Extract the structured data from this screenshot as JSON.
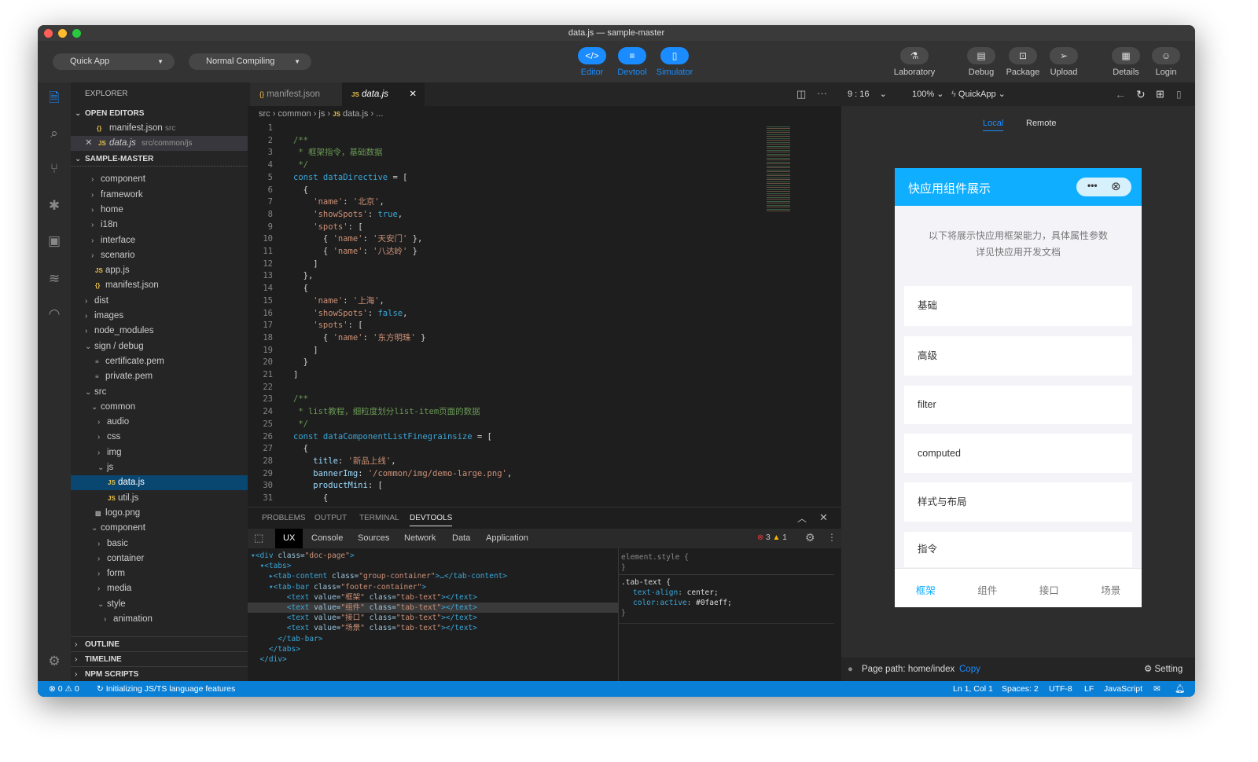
{
  "window": {
    "title": "data.js — sample-master"
  },
  "toolbar": {
    "project_type": "Quick App",
    "compile_mode": "Normal Compiling",
    "center": [
      {
        "label": "Editor",
        "icon": "code-icon",
        "glyph": "</>"
      },
      {
        "label": "Devtool",
        "icon": "sliders-icon",
        "glyph": "≡"
      },
      {
        "label": "Simulator",
        "icon": "phone-icon",
        "glyph": "▯"
      }
    ],
    "right": [
      {
        "label": "Laboratory",
        "icon": "flask-icon",
        "glyph": "⚗"
      },
      {
        "label": "Debug",
        "icon": "debug-icon",
        "glyph": "▤"
      },
      {
        "label": "Package",
        "icon": "package-icon",
        "glyph": "⊡"
      },
      {
        "label": "Upload",
        "icon": "send-icon",
        "glyph": "➢"
      },
      {
        "label": "Details",
        "icon": "document-icon",
        "glyph": "▦"
      },
      {
        "label": "Login",
        "icon": "user-icon",
        "glyph": "☺"
      }
    ],
    "accent": "#1a8cff"
  },
  "sidebar": {
    "title": "EXPLORER",
    "open_editors": {
      "label": "OPEN EDITORS",
      "items": [
        {
          "name": "manifest.json",
          "path": "src",
          "icon": "{}"
        },
        {
          "name": "data.js",
          "path": "src/common/js",
          "icon": "JS"
        }
      ]
    },
    "project": {
      "label": "SAMPLE-MASTER",
      "tree": [
        {
          "name": "common",
          "level": 1,
          "type": "folder"
        },
        {
          "name": "component",
          "level": 1,
          "type": "folder"
        },
        {
          "name": "framework",
          "level": 1,
          "type": "folder"
        },
        {
          "name": "home",
          "level": 1,
          "type": "folder"
        },
        {
          "name": "i18n",
          "level": 1,
          "type": "folder"
        },
        {
          "name": "interface",
          "level": 1,
          "type": "folder"
        },
        {
          "name": "scenario",
          "level": 1,
          "type": "folder"
        },
        {
          "name": "app.js",
          "level": 1,
          "type": "js"
        },
        {
          "name": "manifest.json",
          "level": 1,
          "type": "json"
        },
        {
          "name": "dist",
          "level": 0,
          "type": "folder"
        },
        {
          "name": "images",
          "level": 0,
          "type": "folder"
        },
        {
          "name": "node_modules",
          "level": 0,
          "type": "folder"
        },
        {
          "name": "sign / debug",
          "level": 0,
          "type": "open"
        },
        {
          "name": "certificate.pem",
          "level": 1,
          "type": "file"
        },
        {
          "name": "private.pem",
          "level": 1,
          "type": "file"
        },
        {
          "name": "src",
          "level": 0,
          "type": "open"
        },
        {
          "name": "common",
          "level": 1,
          "type": "open"
        },
        {
          "name": "audio",
          "level": 2,
          "type": "folder"
        },
        {
          "name": "css",
          "level": 2,
          "type": "folder"
        },
        {
          "name": "img",
          "level": 2,
          "type": "folder"
        },
        {
          "name": "js",
          "level": 2,
          "type": "open"
        },
        {
          "name": "data.js",
          "level": 3,
          "type": "js",
          "selected": true
        },
        {
          "name": "util.js",
          "level": 3,
          "type": "js"
        },
        {
          "name": "logo.png",
          "level": 1,
          "type": "image"
        },
        {
          "name": "component",
          "level": 1,
          "type": "open"
        },
        {
          "name": "basic",
          "level": 2,
          "type": "folder"
        },
        {
          "name": "container",
          "level": 2,
          "type": "folder"
        },
        {
          "name": "form",
          "level": 2,
          "type": "folder"
        },
        {
          "name": "media",
          "level": 2,
          "type": "folder"
        },
        {
          "name": "style",
          "level": 2,
          "type": "open"
        },
        {
          "name": "animation",
          "level": 3,
          "type": "folder"
        }
      ]
    },
    "outline": "OUTLINE",
    "timeline": "TIMELINE",
    "npm_scripts": "NPM SCRIPTS"
  },
  "editor": {
    "tabs": [
      {
        "label": "manifest.json",
        "icon": "{}"
      },
      {
        "label": "data.js",
        "icon": "JS",
        "active": true
      }
    ],
    "breadcrumb": [
      "src",
      "common",
      "js",
      "data.js",
      "..."
    ],
    "lines": [
      [],
      [
        [
          "c",
          "/**"
        ]
      ],
      [
        [
          "c",
          " * 框架指令，基础数据"
        ]
      ],
      [
        [
          "c",
          " */"
        ]
      ],
      [
        [
          "k",
          "const dataDirective "
        ],
        [
          "p",
          "= ["
        ]
      ],
      [
        [
          "p",
          "  {"
        ]
      ],
      [
        [
          "s",
          "    'name'"
        ],
        [
          "p",
          ": "
        ],
        [
          "s",
          "'北京'"
        ],
        [
          "p",
          ","
        ]
      ],
      [
        [
          "s",
          "    'showSpots'"
        ],
        [
          "p",
          ": "
        ],
        [
          "k",
          "true"
        ],
        [
          "p",
          ","
        ]
      ],
      [
        [
          "s",
          "    'spots'"
        ],
        [
          "p",
          ": ["
        ]
      ],
      [
        [
          "p",
          "      { "
        ],
        [
          "s",
          "'name'"
        ],
        [
          "p",
          ": "
        ],
        [
          "s",
          "'天安门'"
        ],
        [
          "p",
          " },"
        ]
      ],
      [
        [
          "p",
          "      { "
        ],
        [
          "s",
          "'name'"
        ],
        [
          "p",
          ": "
        ],
        [
          "s",
          "'八达岭'"
        ],
        [
          "p",
          " }"
        ]
      ],
      [
        [
          "p",
          "    ]"
        ]
      ],
      [
        [
          "p",
          "  },"
        ]
      ],
      [
        [
          "p",
          "  {"
        ]
      ],
      [
        [
          "s",
          "    'name'"
        ],
        [
          "p",
          ": "
        ],
        [
          "s",
          "'上海'"
        ],
        [
          "p",
          ","
        ]
      ],
      [
        [
          "s",
          "    'showSpots'"
        ],
        [
          "p",
          ": "
        ],
        [
          "k",
          "false"
        ],
        [
          "p",
          ","
        ]
      ],
      [
        [
          "s",
          "    'spots'"
        ],
        [
          "p",
          ": ["
        ]
      ],
      [
        [
          "p",
          "      { "
        ],
        [
          "s",
          "'name'"
        ],
        [
          "p",
          ": "
        ],
        [
          "s",
          "'东方明珠'"
        ],
        [
          "p",
          " }"
        ]
      ],
      [
        [
          "p",
          "    ]"
        ]
      ],
      [
        [
          "p",
          "  }"
        ]
      ],
      [
        [
          "p",
          "]"
        ]
      ],
      [],
      [
        [
          "c",
          "/**"
        ]
      ],
      [
        [
          "c",
          " * list教程，细粒度划分list-item页面的数据"
        ]
      ],
      [
        [
          "c",
          " */"
        ]
      ],
      [
        [
          "k",
          "const dataComponentListFinegrainsize "
        ],
        [
          "p",
          "= ["
        ]
      ],
      [
        [
          "p",
          "  {"
        ]
      ],
      [
        [
          "pr",
          "    title"
        ],
        [
          "p",
          ": "
        ],
        [
          "s",
          "'新品上线'"
        ],
        [
          "p",
          ","
        ]
      ],
      [
        [
          "pr",
          "    bannerImg"
        ],
        [
          "p",
          ": "
        ],
        [
          "s",
          "'/common/img/demo-large.png'"
        ],
        [
          "p",
          ","
        ]
      ],
      [
        [
          "pr",
          "    productMini"
        ],
        [
          "p",
          ": ["
        ]
      ],
      [
        [
          "p",
          "      {"
        ]
      ]
    ]
  },
  "panel": {
    "tabs": [
      "PROBLEMS",
      "OUTPUT",
      "TERMINAL",
      "DEVTOOLS"
    ],
    "active_tab": "DEVTOOLS",
    "devtools_tabs": [
      "UX",
      "Console",
      "Sources",
      "Network",
      "Data",
      "Application"
    ],
    "errors": "3",
    "warnings": "1",
    "dom": [
      [
        [
          "tg",
          "▾<div "
        ],
        [
          "at",
          "class="
        ],
        [
          "av",
          "\"doc-page\""
        ],
        [
          "tg",
          ">"
        ]
      ],
      [
        [
          "tg",
          "  ▾<tabs>"
        ]
      ],
      [
        [
          "tg",
          "    ▸<tab-content "
        ],
        [
          "at",
          "class="
        ],
        [
          "av",
          "\"group-container\""
        ],
        [
          "tg",
          ">…</tab-content>"
        ]
      ],
      [
        [
          "tg",
          "    ▾<tab-bar "
        ],
        [
          "at",
          "class="
        ],
        [
          "av",
          "\"footer-container\""
        ],
        [
          "tg",
          ">"
        ]
      ],
      [
        [
          "tg",
          "        <text "
        ],
        [
          "at",
          "value="
        ],
        [
          "av",
          "\"框架\" "
        ],
        [
          "at",
          "class="
        ],
        [
          "av",
          "\"tab-text\""
        ],
        [
          "tg",
          "></text>"
        ]
      ],
      [
        [
          "tg",
          "        <text "
        ],
        [
          "at",
          "value="
        ],
        [
          "av",
          "\"组件\" "
        ],
        [
          "at",
          "class="
        ],
        [
          "av",
          "\"tab-text\""
        ],
        [
          "tg",
          "></text>"
        ]
      ],
      [
        [
          "tg",
          "        <text "
        ],
        [
          "at",
          "value="
        ],
        [
          "av",
          "\"接口\" "
        ],
        [
          "at",
          "class="
        ],
        [
          "av",
          "\"tab-text\""
        ],
        [
          "tg",
          "></text>"
        ]
      ],
      [
        [
          "tg",
          "        <text "
        ],
        [
          "at",
          "value="
        ],
        [
          "av",
          "\"场景\" "
        ],
        [
          "at",
          "class="
        ],
        [
          "av",
          "\"tab-text\""
        ],
        [
          "tg",
          "></text>"
        ]
      ],
      [
        [
          "tg",
          "      </tab-bar>"
        ]
      ],
      [
        [
          "tg",
          "    </tabs>"
        ]
      ],
      [
        [
          "tg",
          "  </div>"
        ]
      ]
    ],
    "styles": {
      "element_style": "element.style {",
      "element_close": "}",
      "selector": ".tab-text {",
      "rules": [
        [
          "text-align",
          "center;"
        ],
        [
          "color:active",
          "#0faeff;"
        ]
      ],
      "close": "}"
    }
  },
  "simulator": {
    "ratio": "9 : 16",
    "zoom": "100%",
    "platform": "QuickApp",
    "tabs": [
      "Local",
      "Remote"
    ],
    "active_tab": "Local",
    "app": {
      "title": "快应用组件展示",
      "header_color": "#0faeff",
      "description": [
        "以下将展示快应用框架能力，具体属性参数",
        "详见快应用开发文档"
      ],
      "items": [
        "基础",
        "高级",
        "filter",
        "computed",
        "样式与布局",
        "指令"
      ],
      "tabbar": [
        "框架",
        "组件",
        "接口",
        "场景"
      ],
      "active_tab": "框架"
    },
    "page_path": "Page path: home/index",
    "copy": "Copy",
    "setting": "Setting"
  },
  "statusbar": {
    "errors": "0",
    "warnings": "0",
    "message": "Initializing JS/TS language features",
    "position": "Ln 1, Col 1",
    "spaces": "Spaces: 2",
    "encoding": "UTF-8",
    "eol": "LF",
    "language": "JavaScript",
    "color": "#0a7fd6"
  }
}
